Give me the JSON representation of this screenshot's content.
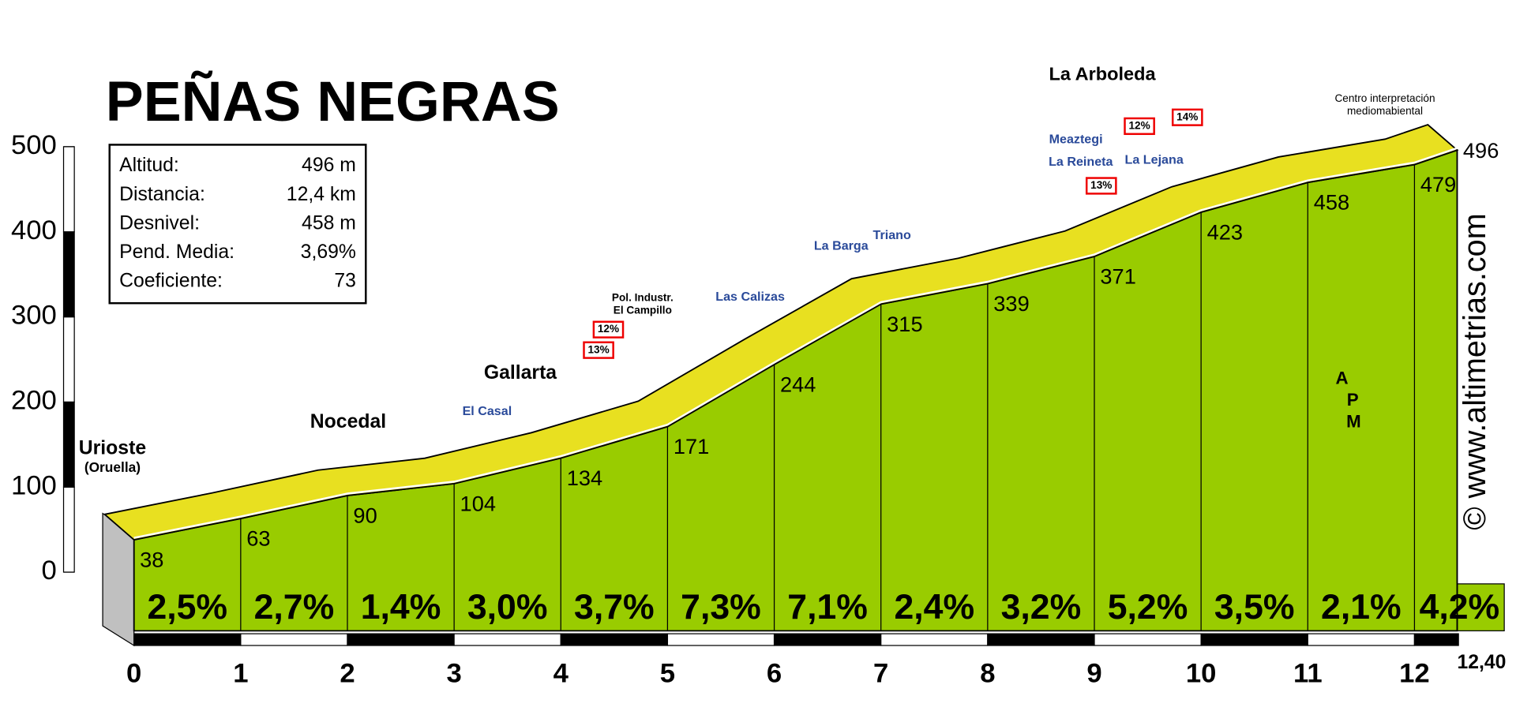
{
  "chart_data": {
    "type": "profile",
    "title": "PEÑAS NEGRAS",
    "info": [
      [
        "Altitud:",
        "496 m"
      ],
      [
        "Distancia:",
        "12,4 km"
      ],
      [
        "Desnivel:",
        "458 m"
      ],
      [
        "Pend. Media:",
        "3,69%"
      ],
      [
        "Coeficiente:",
        "73"
      ]
    ],
    "x": [
      0,
      1,
      2,
      3,
      4,
      5,
      6,
      7,
      8,
      9,
      10,
      11,
      12,
      12.4
    ],
    "values": [
      38,
      63,
      90,
      104,
      134,
      171,
      244,
      315,
      339,
      371,
      423,
      458,
      479,
      496
    ],
    "gradients": {
      "values": [
        2.5,
        2.7,
        1.4,
        3.0,
        3.7,
        7.3,
        7.1,
        2.4,
        3.2,
        5.2,
        3.5,
        2.1,
        4.2
      ],
      "value_labels": [
        "2,5%",
        "2,7%",
        "1,4%",
        "3,0%",
        "3,7%",
        "7,3%",
        "7,1%",
        "2,4%",
        "3,2%",
        "5,2%",
        "3,5%",
        "2,1%",
        "4,2%"
      ]
    },
    "xlim": [
      0,
      12.4
    ],
    "xticks": [
      0,
      1,
      2,
      3,
      4,
      5,
      6,
      7,
      8,
      9,
      10,
      11,
      12,
      {
        "value": 12.4,
        "label": "12,40"
      }
    ],
    "ylim": [
      0,
      500
    ],
    "yticks": [
      0,
      100,
      200,
      300,
      400,
      500
    ],
    "color": "#99cc00",
    "road_color": "#e8e020",
    "annotations": [
      "Urioste",
      "(Oruella)",
      "Nocedal",
      "Gallarta",
      "El Casal",
      "Pol. Industr.",
      "El Campillo",
      "12%",
      "13%",
      "Las Calizas",
      "La Barga",
      "Triano",
      "La Arboleda",
      "Meaztegi",
      "La Reineta",
      "La Lejana",
      "12%",
      "13%",
      "14%",
      "Centro interpretación",
      "mediomabiental",
      "© www.altimetrias.com"
    ],
    "logo": [
      "A",
      "P",
      "M"
    ]
  }
}
